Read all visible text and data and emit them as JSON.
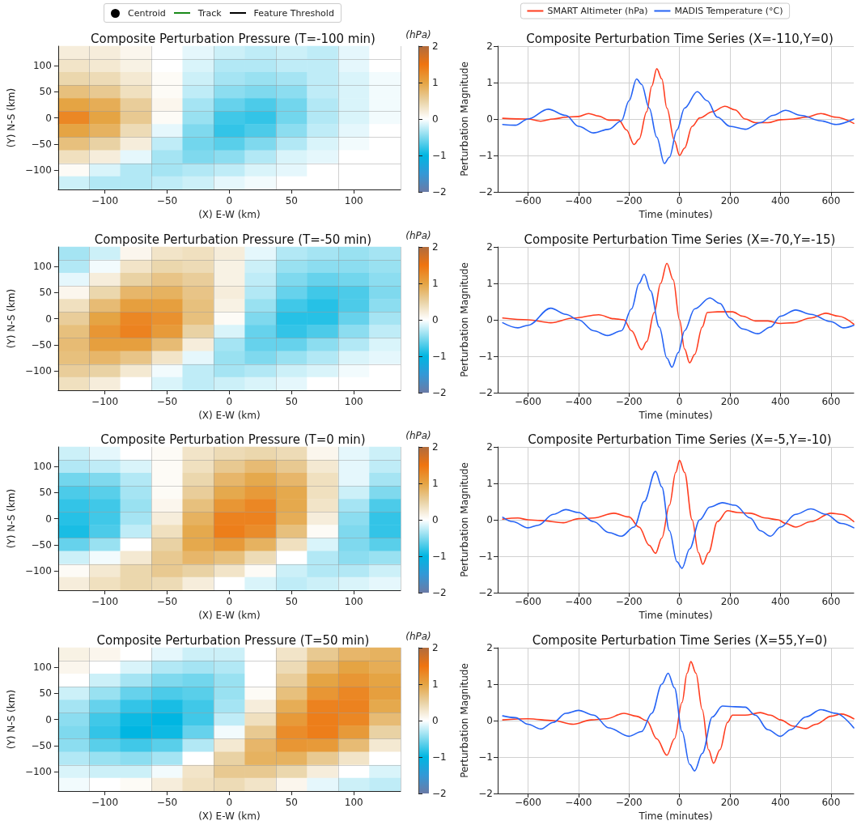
{
  "chart_data": [
    {
      "type": "heatmap",
      "title": "Composite Perturbation Pressure (T=-100 min)",
      "xlabel": "(X) E-W (km)",
      "ylabel": "(Y) N-S (km)",
      "clabel": "(hPa)",
      "grid": true,
      "annotations": [
        "Centroid",
        "Track",
        "Feature Threshold"
      ],
      "categories": [
        null,
        "−100",
        null,
        "−50",
        null,
        "0",
        null,
        "50",
        null,
        "100",
        null
      ],
      "y_categories": [
        null,
        "100",
        null,
        "50",
        null,
        "0",
        null,
        "−50",
        null,
        "−100",
        null
      ],
      "clim": [
        -2,
        2
      ],
      "cticks": [
        -2,
        -1,
        0,
        1,
        2
      ],
      "cells": [
        [
          0.2,
          0.2,
          0.1,
          0,
          -0.1,
          -0.2,
          -0.25,
          -0.2,
          -0.25,
          -0.1,
          0
        ],
        [
          0.3,
          0.25,
          0.15,
          0,
          -0.15,
          -0.3,
          -0.3,
          -0.25,
          -0.25,
          -0.1,
          0
        ],
        [
          0.45,
          0.4,
          0.25,
          0.05,
          -0.2,
          -0.35,
          -0.4,
          -0.35,
          -0.25,
          -0.15,
          -0.05
        ],
        [
          0.7,
          0.6,
          0.35,
          0.05,
          -0.25,
          -0.45,
          -0.5,
          -0.45,
          -0.25,
          -0.15,
          -0.05
        ],
        [
          1.0,
          0.9,
          0.55,
          0.1,
          -0.35,
          -0.6,
          -0.7,
          -0.55,
          -0.3,
          -0.15,
          -0.05
        ],
        [
          1.3,
          1.0,
          0.6,
          0.05,
          -0.4,
          -0.75,
          -0.8,
          -0.55,
          -0.3,
          -0.15,
          -0.05
        ],
        [
          1.0,
          0.85,
          0.4,
          -0.1,
          -0.5,
          -0.8,
          -0.7,
          -0.45,
          -0.25,
          -0.1,
          0
        ],
        [
          0.7,
          0.5,
          0.2,
          -0.25,
          -0.55,
          -0.65,
          -0.5,
          -0.3,
          -0.15,
          -0.05,
          0
        ],
        [
          0.35,
          0.2,
          -0.1,
          -0.35,
          -0.5,
          -0.45,
          -0.3,
          -0.15,
          -0.1,
          0,
          0
        ],
        [
          0.05,
          -0.15,
          -0.3,
          -0.35,
          -0.3,
          -0.25,
          -0.15,
          -0.1,
          0,
          0,
          0
        ],
        [
          -0.2,
          -0.3,
          -0.3,
          -0.25,
          -0.2,
          -0.1,
          -0.05,
          0,
          0,
          0,
          0
        ]
      ]
    },
    {
      "type": "line",
      "title": "Composite Perturbation Time Series (X=-110,Y=0)",
      "xlabel": "Time (minutes)",
      "ylabel": "Perturbation Magnitude",
      "grid": true,
      "legend": "top",
      "marker": "none",
      "xlim": [
        -720,
        690
      ],
      "xticks": [
        -600,
        -400,
        -200,
        0,
        200,
        400,
        600
      ],
      "ylim": [
        -2,
        2
      ],
      "yticks": [
        -2,
        -1,
        0,
        1,
        2
      ],
      "series": [
        {
          "name": "SMART Altimeter (hPa)",
          "color": "#ff3d1f",
          "x": [
            -700,
            -600,
            -550,
            -500,
            -450,
            -400,
            -360,
            -320,
            -280,
            -240,
            -210,
            -180,
            -160,
            -130,
            -110,
            -90,
            -70,
            -50,
            -20,
            0,
            20,
            50,
            80,
            130,
            180,
            220,
            260,
            300,
            350,
            400,
            450,
            500,
            560,
            620,
            690
          ],
          "values": [
            0.02,
            0,
            -0.06,
            0,
            0.05,
            0.07,
            0.15,
            0.08,
            -0.03,
            -0.03,
            -0.3,
            -0.7,
            -0.55,
            0.2,
            0.9,
            1.38,
            1.1,
            0.3,
            -0.6,
            -1.0,
            -0.8,
            -0.2,
            0.03,
            0.2,
            0.35,
            0.25,
            0,
            -0.1,
            -0.1,
            -0.02,
            0,
            0.05,
            0.15,
            0.05,
            -0.12
          ]
        },
        {
          "name": "MADIS Temperature (°C)",
          "color": "#2563f5",
          "x": [
            -700,
            -650,
            -600,
            -520,
            -450,
            -400,
            -340,
            -280,
            -230,
            -200,
            -170,
            -150,
            -120,
            -90,
            -60,
            -40,
            -10,
            20,
            70,
            110,
            150,
            200,
            260,
            320,
            370,
            420,
            480,
            560,
            620,
            690
          ],
          "values": [
            -0.15,
            -0.17,
            0,
            0.27,
            0.1,
            -0.2,
            -0.38,
            -0.28,
            -0.05,
            0.5,
            1.1,
            0.95,
            0.3,
            -0.5,
            -1.22,
            -1.05,
            -0.3,
            0.3,
            0.75,
            0.5,
            0.05,
            -0.2,
            -0.28,
            -0.1,
            0.1,
            0.24,
            0.1,
            -0.05,
            -0.15,
            0
          ]
        }
      ]
    },
    {
      "type": "heatmap",
      "title": "Composite Perturbation Pressure (T=-50 min)",
      "xlabel": "(X) E-W (km)",
      "ylabel": "(Y) N-S (km)",
      "clabel": "(hPa)",
      "grid": true,
      "categories": [
        null,
        "−100",
        null,
        "−50",
        null,
        "0",
        null,
        "50",
        null,
        "100",
        null
      ],
      "y_categories": [
        null,
        "100",
        null,
        "50",
        null,
        "0",
        null,
        "−50",
        null,
        "−100",
        null
      ],
      "clim": [
        -2,
        2
      ],
      "cticks": [
        -2,
        -1,
        0,
        1,
        2
      ],
      "cells": [
        [
          -0.35,
          -0.2,
          0.1,
          0.3,
          0.35,
          0.2,
          -0.1,
          -0.3,
          -0.35,
          -0.4,
          -0.35
        ],
        [
          -0.3,
          -0.05,
          0.3,
          0.45,
          0.4,
          0.15,
          -0.2,
          -0.4,
          -0.45,
          -0.45,
          -0.4
        ],
        [
          -0.1,
          0.2,
          0.5,
          0.65,
          0.55,
          0.15,
          -0.25,
          -0.5,
          -0.6,
          -0.55,
          -0.45
        ],
        [
          0.1,
          0.45,
          0.8,
          0.85,
          0.65,
          0.2,
          -0.3,
          -0.6,
          -0.75,
          -0.7,
          -0.5
        ],
        [
          0.35,
          0.75,
          1.05,
          1.05,
          0.7,
          0.15,
          -0.4,
          -0.75,
          -0.85,
          -0.7,
          -0.45
        ],
        [
          0.55,
          1.0,
          1.3,
          1.2,
          0.7,
          0.05,
          -0.5,
          -0.85,
          -0.85,
          -0.6,
          -0.35
        ],
        [
          0.7,
          1.15,
          1.35,
          1.1,
          0.5,
          -0.15,
          -0.6,
          -0.8,
          -0.7,
          -0.45,
          -0.25
        ],
        [
          0.75,
          1.05,
          1.05,
          0.75,
          0.2,
          -0.35,
          -0.6,
          -0.6,
          -0.45,
          -0.3,
          -0.15
        ],
        [
          0.7,
          0.8,
          0.65,
          0.3,
          -0.1,
          -0.4,
          -0.5,
          -0.4,
          -0.3,
          -0.15,
          -0.1
        ],
        [
          0.55,
          0.5,
          0.25,
          -0.05,
          -0.25,
          -0.35,
          -0.3,
          -0.2,
          -0.15,
          -0.05,
          0
        ],
        [
          0.35,
          0.2,
          0,
          -0.15,
          -0.25,
          -0.2,
          -0.15,
          -0.1,
          0,
          0,
          0
        ]
      ]
    },
    {
      "type": "line",
      "title": "Composite Perturbation Time Series (X=-70,Y=-15)",
      "xlabel": "Time (minutes)",
      "ylabel": "Perturbation Magnitude",
      "grid": true,
      "marker": "none",
      "xlim": [
        -720,
        690
      ],
      "xticks": [
        -600,
        -400,
        -200,
        0,
        200,
        400,
        600
      ],
      "ylim": [
        -2,
        2
      ],
      "yticks": [
        -2,
        -1,
        0,
        1,
        2
      ],
      "series": [
        {
          "color": "#ff3d1f",
          "x": [
            -700,
            -600,
            -510,
            -420,
            -320,
            -260,
            -220,
            -190,
            -150,
            -130,
            -100,
            -75,
            -50,
            -25,
            0,
            20,
            40,
            60,
            90,
            110,
            150,
            210,
            250,
            300,
            350,
            400,
            450,
            520,
            580,
            630,
            690
          ],
          "values": [
            0.05,
            0,
            -0.08,
            0.05,
            0.14,
            0.03,
            0,
            -0.3,
            -0.82,
            -0.6,
            0.2,
            1.0,
            1.55,
            1.1,
            0,
            -0.8,
            -1.18,
            -0.95,
            -0.2,
            0.2,
            0.22,
            0.22,
            0.1,
            -0.03,
            -0.03,
            -0.1,
            -0.08,
            0.05,
            0.18,
            0.1,
            -0.12
          ]
        },
        {
          "color": "#2563f5",
          "x": [
            -700,
            -640,
            -600,
            -510,
            -450,
            -400,
            -340,
            -285,
            -230,
            -190,
            -160,
            -140,
            -115,
            -80,
            -50,
            -30,
            -5,
            20,
            60,
            120,
            160,
            200,
            250,
            310,
            360,
            400,
            460,
            520,
            600,
            650,
            690
          ],
          "values": [
            -0.08,
            -0.22,
            -0.15,
            0.32,
            0.15,
            0,
            -0.3,
            -0.43,
            -0.3,
            0.3,
            1.0,
            1.25,
            0.8,
            -0.2,
            -1.05,
            -1.3,
            -0.9,
            -0.3,
            0.3,
            0.6,
            0.45,
            0.05,
            -0.25,
            -0.38,
            -0.2,
            0.1,
            0.27,
            0.15,
            -0.05,
            -0.22,
            -0.15
          ]
        }
      ]
    },
    {
      "type": "heatmap",
      "title": "Composite Perturbation Pressure (T=0 min)",
      "xlabel": "(X) E-W (km)",
      "ylabel": "(Y) N-S (km)",
      "clabel": "(hPa)",
      "grid": true,
      "categories": [
        null,
        "−100",
        null,
        "−50",
        null,
        "0",
        null,
        "50",
        null,
        "100",
        null
      ],
      "y_categories": [
        null,
        "100",
        null,
        "50",
        null,
        "0",
        null,
        "−50",
        null,
        "−100",
        null
      ],
      "clim": [
        -2,
        2
      ],
      "cticks": [
        -2,
        -1,
        0,
        1,
        2
      ],
      "cells": [
        [
          -0.2,
          -0.1,
          0,
          0.05,
          0.3,
          0.4,
          0.45,
          0.4,
          0.1,
          -0.1,
          -0.2
        ],
        [
          -0.3,
          -0.25,
          -0.15,
          0.05,
          0.35,
          0.6,
          0.75,
          0.6,
          0.25,
          -0.1,
          -0.25
        ],
        [
          -0.55,
          -0.5,
          -0.3,
          0.05,
          0.45,
          0.8,
          0.95,
          0.8,
          0.35,
          -0.1,
          -0.35
        ],
        [
          -0.7,
          -0.65,
          -0.35,
          0.05,
          0.55,
          0.95,
          1.1,
          0.95,
          0.35,
          -0.2,
          -0.5
        ],
        [
          -0.8,
          -0.75,
          -0.4,
          0.1,
          0.7,
          1.15,
          1.3,
          0.95,
          0.3,
          -0.35,
          -0.7
        ],
        [
          -0.85,
          -0.75,
          -0.35,
          0.2,
          0.85,
          1.35,
          1.35,
          0.9,
          0.2,
          -0.45,
          -0.8
        ],
        [
          -0.9,
          -0.7,
          -0.25,
          0.35,
          0.95,
          1.4,
          1.25,
          0.7,
          0.05,
          -0.5,
          -0.8
        ],
        [
          -0.6,
          -0.4,
          0,
          0.5,
          0.95,
          1.1,
          0.85,
          0.35,
          -0.15,
          -0.5,
          -0.65
        ],
        [
          -0.2,
          -0.05,
          0.25,
          0.6,
          0.8,
          0.7,
          0.4,
          0,
          -0.3,
          -0.45,
          -0.4
        ],
        [
          0.05,
          0.25,
          0.45,
          0.6,
          0.5,
          0.3,
          0.05,
          -0.2,
          -0.3,
          -0.3,
          -0.2
        ],
        [
          0.2,
          0.35,
          0.45,
          0.4,
          0.2,
          0,
          -0.15,
          -0.25,
          -0.2,
          -0.15,
          -0.1
        ]
      ]
    },
    {
      "type": "line",
      "title": "Composite Perturbation Time Series (X=-5,Y=-10)",
      "xlabel": "Time (minutes)",
      "ylabel": "Perturbation Magnitude",
      "grid": true,
      "marker": "none",
      "xlim": [
        -720,
        690
      ],
      "xticks": [
        -600,
        -400,
        -200,
        0,
        200,
        400,
        600
      ],
      "ylim": [
        -2,
        2
      ],
      "yticks": [
        -2,
        -1,
        0,
        1,
        2
      ],
      "series": [
        {
          "color": "#ff3d1f",
          "x": [
            -700,
            -640,
            -600,
            -550,
            -460,
            -400,
            -340,
            -260,
            -200,
            -160,
            -120,
            -95,
            -70,
            -40,
            -15,
            0,
            20,
            50,
            75,
            92,
            115,
            150,
            190,
            230,
            280,
            340,
            390,
            420,
            460,
            520,
            600,
            640,
            690
          ],
          "values": [
            0.02,
            0.05,
            0,
            -0.02,
            -0.08,
            0.03,
            0.05,
            0.18,
            0.08,
            -0.2,
            -0.7,
            -0.92,
            -0.5,
            0.4,
            1.3,
            1.63,
            1.3,
            0,
            -0.9,
            -1.22,
            -0.9,
            -0.05,
            0.25,
            0.2,
            0.18,
            0.05,
            0,
            -0.1,
            -0.2,
            -0.05,
            0.18,
            0.15,
            -0.05
          ]
        },
        {
          "color": "#2563f5",
          "x": [
            -700,
            -660,
            -600,
            -560,
            -500,
            -450,
            -400,
            -340,
            -280,
            -230,
            -180,
            -140,
            -95,
            -70,
            -40,
            -10,
            10,
            40,
            80,
            120,
            170,
            220,
            280,
            320,
            360,
            400,
            460,
            520,
            580,
            640,
            690
          ],
          "values": [
            0.07,
            -0.05,
            -0.22,
            -0.15,
            0.15,
            0.28,
            0.2,
            -0.05,
            -0.35,
            -0.45,
            -0.2,
            0.5,
            1.33,
            0.9,
            -0.3,
            -1.15,
            -1.33,
            -0.8,
            0,
            0.35,
            0.47,
            0.4,
            0.05,
            -0.3,
            -0.45,
            -0.2,
            0.15,
            0.3,
            0.15,
            -0.1,
            -0.22
          ]
        }
      ]
    },
    {
      "type": "heatmap",
      "title": "Composite Perturbation Pressure (T=50 min)",
      "xlabel": "(X) E-W (km)",
      "ylabel": "(Y) N-S (km)",
      "clabel": "(hPa)",
      "grid": true,
      "categories": [
        null,
        "−100",
        null,
        "−50",
        null,
        "0",
        null,
        "50",
        null,
        "100",
        null
      ],
      "y_categories": [
        null,
        "100",
        null,
        "50",
        null,
        "0",
        null,
        "−50",
        null,
        "−100",
        null
      ],
      "clim": [
        -2,
        2
      ],
      "cticks": [
        -2,
        -1,
        0,
        1,
        2
      ],
      "cells": [
        [
          0.15,
          0.1,
          0,
          -0.1,
          -0.2,
          -0.2,
          0,
          0.3,
          0.6,
          0.8,
          0.85
        ],
        [
          0.1,
          0,
          -0.15,
          -0.3,
          -0.35,
          -0.3,
          0,
          0.4,
          0.8,
          1.0,
          0.9
        ],
        [
          0,
          -0.2,
          -0.35,
          -0.5,
          -0.55,
          -0.4,
          0,
          0.55,
          1.0,
          1.15,
          1.0
        ],
        [
          -0.2,
          -0.4,
          -0.6,
          -0.7,
          -0.65,
          -0.4,
          0.05,
          0.7,
          1.15,
          1.3,
          1.05
        ],
        [
          -0.35,
          -0.6,
          -0.8,
          -0.9,
          -0.75,
          -0.35,
          0.2,
          0.9,
          1.35,
          1.35,
          0.95
        ],
        [
          -0.45,
          -0.75,
          -0.95,
          -1.0,
          -0.75,
          -0.25,
          0.35,
          1.1,
          1.4,
          1.3,
          0.75
        ],
        [
          -0.5,
          -0.8,
          -1.0,
          -0.95,
          -0.6,
          -0.05,
          0.6,
          1.25,
          1.4,
          1.1,
          0.5
        ],
        [
          -0.45,
          -0.65,
          -0.75,
          -0.65,
          -0.3,
          0.25,
          0.8,
          1.15,
          1.1,
          0.75,
          0.25
        ],
        [
          -0.3,
          -0.4,
          -0.45,
          -0.35,
          0,
          0.5,
          0.85,
          0.85,
          0.6,
          0.3,
          0
        ],
        [
          -0.15,
          -0.2,
          -0.2,
          -0.05,
          0.3,
          0.6,
          0.6,
          0.45,
          0.2,
          0,
          -0.15
        ],
        [
          -0.05,
          0,
          0.05,
          0.2,
          0.35,
          0.4,
          0.3,
          0.1,
          -0.1,
          -0.2,
          -0.25
        ]
      ]
    },
    {
      "type": "line",
      "title": "Composite Perturbation Time Series (X=55,Y=0)",
      "xlabel": "Time (minutes)",
      "ylabel": "Perturbation Magnitude",
      "grid": true,
      "marker": "none",
      "xlim": [
        -720,
        690
      ],
      "xticks": [
        -600,
        -400,
        -200,
        0,
        200,
        400,
        600
      ],
      "ylim": [
        -2,
        2
      ],
      "yticks": [
        -2,
        -1,
        0,
        1,
        2
      ],
      "series": [
        {
          "color": "#ff3d1f",
          "x": [
            -700,
            -600,
            -500,
            -420,
            -350,
            -290,
            -220,
            -170,
            -130,
            -90,
            -50,
            -20,
            10,
            30,
            45,
            65,
            90,
            115,
            135,
            160,
            190,
            210,
            260,
            320,
            360,
            400,
            450,
            500,
            540,
            600,
            640,
            690
          ],
          "values": [
            0.02,
            0.05,
            0,
            -0.1,
            0.02,
            0.05,
            0.2,
            0.12,
            0,
            -0.5,
            -0.95,
            -0.5,
            0.5,
            1.3,
            1.62,
            1.3,
            0.3,
            -0.8,
            -1.17,
            -0.8,
            -0.05,
            0.15,
            0.15,
            0.22,
            0.15,
            0.02,
            -0.15,
            -0.22,
            -0.1,
            0.12,
            0.18,
            0.05
          ]
        },
        {
          "color": "#2563f5",
          "x": [
            -700,
            -650,
            -600,
            -550,
            -500,
            -450,
            -400,
            -340,
            -280,
            -200,
            -150,
            -110,
            -70,
            -45,
            -20,
            10,
            40,
            60,
            90,
            130,
            170,
            220,
            260,
            300,
            350,
            400,
            440,
            500,
            560,
            620,
            690
          ],
          "values": [
            0.13,
            0.08,
            -0.1,
            -0.23,
            -0.05,
            0.2,
            0.28,
            0.15,
            -0.2,
            -0.43,
            -0.3,
            0.2,
            1.0,
            1.3,
            0.9,
            -0.3,
            -1.2,
            -1.38,
            -0.9,
            0.1,
            0.4,
            0.38,
            0.37,
            0.15,
            -0.25,
            -0.43,
            -0.25,
            0.1,
            0.3,
            0.2,
            -0.2
          ]
        }
      ]
    }
  ]
}
